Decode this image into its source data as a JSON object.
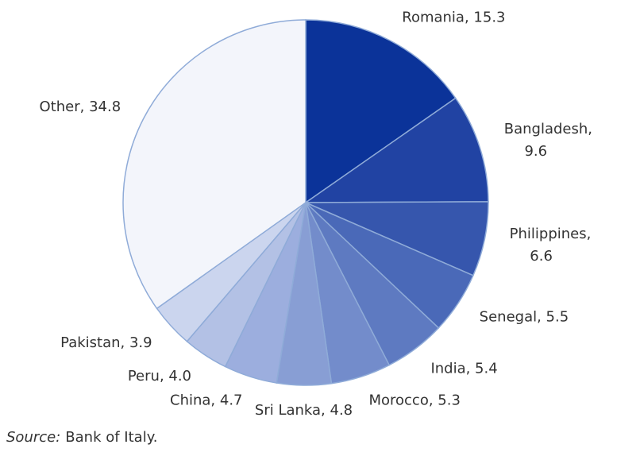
{
  "chart_data": {
    "type": "pie",
    "values": [
      15.3,
      9.6,
      6.6,
      5.5,
      5.4,
      5.3,
      4.8,
      4.7,
      4.0,
      3.9,
      34.8
    ],
    "value_labels": [
      "Romania, 15.3",
      "Bangladesh, 9.6",
      "Philippines, 6.6",
      "Senegal, 5.5",
      "India, 5.4",
      "Morocco, 5.3",
      "Sri Lanka, 4.8",
      "China, 4.7",
      "Peru, 4.0",
      "Pakistan, 3.9",
      "Other, 34.8"
    ],
    "colors": [
      "#0b3399",
      "#2143a3",
      "#3656ad",
      "#4a69b8",
      "#5e7ac1",
      "#738ccb",
      "#889ed4",
      "#9caede",
      "#b3c1e5",
      "#cbd5ee",
      "#f3f5fb"
    ],
    "edge_color": "#8fabd8",
    "source_label": "Source:",
    "source": "Bank of Italy."
  }
}
